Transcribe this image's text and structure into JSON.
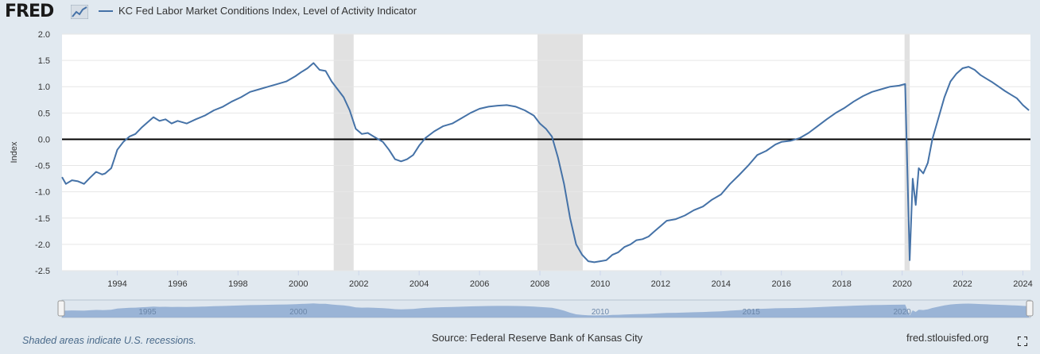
{
  "header": {
    "logo_text": "FRED",
    "legend_label": "KC Fed Labor Market Conditions Index, Level of Activity Indicator"
  },
  "footer": {
    "note": "Shaded areas indicate U.S. recessions.",
    "source": "Source: Federal Reserve Bank of Kansas City",
    "url": "fred.stlouisfed.org"
  },
  "navigator_labels": [
    "1995",
    "2000",
    "2010",
    "2015",
    "2020"
  ],
  "colors": {
    "series": "#4572a7",
    "recession": "#e1e1e1",
    "zero_line": "#000000",
    "background": "#e1e9f0",
    "plot": "#ffffff"
  },
  "chart_data": {
    "type": "line",
    "title": "",
    "xlabel": "",
    "ylabel": "Index",
    "xlim": [
      1992.17,
      2024.25
    ],
    "ylim": [
      -2.5,
      2.0
    ],
    "yticks": [
      2.0,
      1.5,
      1.0,
      0.5,
      0.0,
      -0.5,
      -1.0,
      -1.5,
      -2.0,
      -2.5
    ],
    "ytick_labels": [
      "2.0",
      "1.5",
      "1.0",
      "0.5",
      "0.0",
      "-0.5",
      "-1.0",
      "-1.5",
      "-2.0",
      "-2.5"
    ],
    "xticks": [
      1994,
      1996,
      1998,
      2000,
      2002,
      2004,
      2006,
      2008,
      2010,
      2012,
      2014,
      2016,
      2018,
      2020,
      2022,
      2024
    ],
    "xtick_labels": [
      "1994",
      "1996",
      "1998",
      "2000",
      "2002",
      "2004",
      "2006",
      "2008",
      "2010",
      "2012",
      "2014",
      "2016",
      "2018",
      "2020",
      "2022",
      "2024"
    ],
    "grid": "horizontal",
    "reference_line": 0,
    "recessions": [
      [
        2001.17,
        2001.83
      ],
      [
        2007.92,
        2009.42
      ],
      [
        2020.08,
        2020.25
      ]
    ],
    "series": [
      {
        "name": "KC Fed Labor Market Conditions Index, Level of Activity Indicator",
        "x": [
          1992.17,
          1992.3,
          1992.5,
          1992.7,
          1992.9,
          1993.1,
          1993.3,
          1993.5,
          1993.6,
          1993.8,
          1993.9,
          1994.0,
          1994.2,
          1994.4,
          1994.6,
          1994.8,
          1995.0,
          1995.2,
          1995.4,
          1995.6,
          1995.8,
          1996.0,
          1996.3,
          1996.6,
          1996.9,
          1997.2,
          1997.5,
          1997.8,
          1998.1,
          1998.4,
          1998.7,
          1999.0,
          1999.3,
          1999.6,
          1999.9,
          2000.1,
          2000.3,
          2000.5,
          2000.7,
          2000.9,
          2001.1,
          2001.3,
          2001.5,
          2001.7,
          2001.9,
          2002.1,
          2002.3,
          2002.5,
          2002.8,
          2003.0,
          2003.2,
          2003.4,
          2003.6,
          2003.8,
          2004.0,
          2004.2,
          2004.5,
          2004.8,
          2005.1,
          2005.4,
          2005.7,
          2006.0,
          2006.3,
          2006.6,
          2006.9,
          2007.2,
          2007.5,
          2007.8,
          2008.0,
          2008.2,
          2008.4,
          2008.6,
          2008.8,
          2009.0,
          2009.2,
          2009.4,
          2009.6,
          2009.8,
          2010.0,
          2010.2,
          2010.4,
          2010.6,
          2010.8,
          2011.0,
          2011.2,
          2011.4,
          2011.6,
          2011.8,
          2012.0,
          2012.2,
          2012.5,
          2012.8,
          2013.1,
          2013.4,
          2013.7,
          2014.0,
          2014.3,
          2014.6,
          2014.9,
          2015.2,
          2015.5,
          2015.8,
          2016.0,
          2016.3,
          2016.6,
          2016.9,
          2017.2,
          2017.5,
          2017.8,
          2018.1,
          2018.4,
          2018.7,
          2019.0,
          2019.3,
          2019.6,
          2019.9,
          2020.1,
          2020.25,
          2020.35,
          2020.45,
          2020.55,
          2020.7,
          2020.85,
          2021.0,
          2021.2,
          2021.4,
          2021.6,
          2021.8,
          2022.0,
          2022.2,
          2022.4,
          2022.6,
          2022.8,
          2023.0,
          2023.2,
          2023.4,
          2023.6,
          2023.8,
          2024.0,
          2024.2
        ],
        "values": [
          -0.72,
          -0.85,
          -0.78,
          -0.8,
          -0.85,
          -0.73,
          -0.62,
          -0.67,
          -0.65,
          -0.55,
          -0.38,
          -0.2,
          -0.05,
          0.05,
          0.1,
          0.22,
          0.32,
          0.42,
          0.35,
          0.38,
          0.3,
          0.35,
          0.3,
          0.38,
          0.45,
          0.55,
          0.62,
          0.72,
          0.8,
          0.9,
          0.95,
          1.0,
          1.05,
          1.1,
          1.2,
          1.28,
          1.35,
          1.45,
          1.32,
          1.3,
          1.1,
          0.95,
          0.8,
          0.55,
          0.2,
          0.1,
          0.12,
          0.05,
          -0.05,
          -0.2,
          -0.38,
          -0.42,
          -0.38,
          -0.3,
          -0.12,
          0.02,
          0.15,
          0.25,
          0.3,
          0.4,
          0.5,
          0.58,
          0.62,
          0.64,
          0.65,
          0.62,
          0.55,
          0.45,
          0.3,
          0.2,
          0.05,
          -0.35,
          -0.85,
          -1.5,
          -2.0,
          -2.2,
          -2.32,
          -2.34,
          -2.32,
          -2.3,
          -2.2,
          -2.15,
          -2.05,
          -2.0,
          -1.92,
          -1.9,
          -1.85,
          -1.75,
          -1.65,
          -1.55,
          -1.52,
          -1.45,
          -1.35,
          -1.28,
          -1.15,
          -1.05,
          -0.85,
          -0.68,
          -0.5,
          -0.3,
          -0.22,
          -0.1,
          -0.05,
          -0.03,
          0.02,
          0.12,
          0.25,
          0.38,
          0.5,
          0.6,
          0.72,
          0.82,
          0.9,
          0.95,
          1.0,
          1.02,
          1.05,
          -2.3,
          -0.75,
          -1.25,
          -0.55,
          -0.65,
          -0.45,
          0.0,
          0.4,
          0.8,
          1.1,
          1.25,
          1.35,
          1.38,
          1.32,
          1.22,
          1.15,
          1.08,
          1.0,
          0.92,
          0.85,
          0.78,
          0.65,
          0.55
        ]
      }
    ]
  }
}
